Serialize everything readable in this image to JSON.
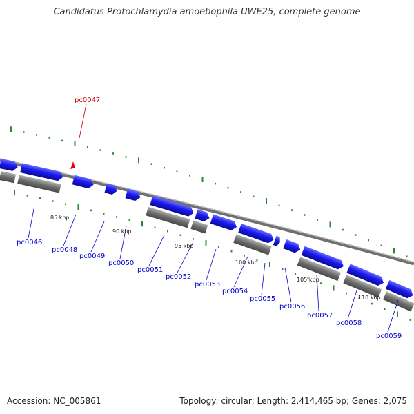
{
  "title": "Candidatus Protochlamydia amoebophila UWE25, complete genome",
  "accession": "Accession: NC_005861",
  "summary": "Topology: circular; Length: 2,414,465 bp; Genes: 2,075",
  "colors": {
    "gene": "#1a1aee",
    "gene_highlight": "#cc0000",
    "backbone": "#8a8a8a",
    "tick": "#2a8a2a"
  },
  "highlighted_gene": "pc0047",
  "gene_labels": [
    "pc0046",
    "pc0048",
    "pc0049",
    "pc0050",
    "pc0051",
    "pc0052",
    "pc0053",
    "pc0054",
    "pc0055",
    "pc0056",
    "pc0057",
    "pc0058",
    "pc0059"
  ],
  "kbp_labels": [
    "85 kbp",
    "90 kbp",
    "95 kbp",
    "100 kbp",
    "105 kbp",
    "110 kbp"
  ]
}
